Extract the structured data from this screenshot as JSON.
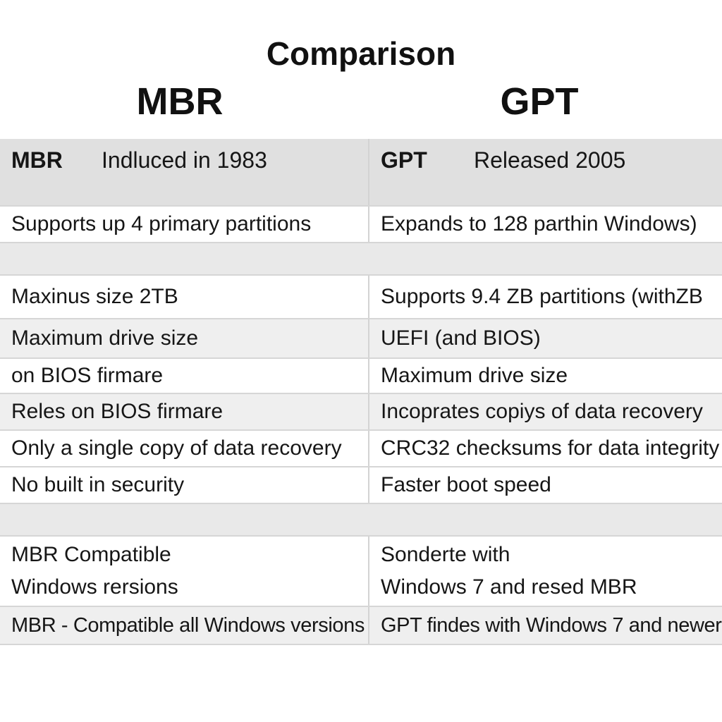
{
  "title": "Comparison",
  "columns": {
    "left": "MBR",
    "right": "GPT"
  },
  "header_row": {
    "left_label": "MBR",
    "left_value": "Indluced in 1983",
    "right_label": "GPT",
    "right_value": "Released 2005"
  },
  "rows": [
    {
      "left": "Supports up 4 primary partitions",
      "right": "Expands  to 128 parthin Windows)"
    },
    {
      "left": "Maxinus size 2TB",
      "right": "Supports 9.4 ZB partitions (withZB"
    },
    {
      "left": "Maximum drive size",
      "right": "UEFI (and BIOS)"
    },
    {
      "left": "on BIOS firmare",
      "right": "Maximum drive size"
    },
    {
      "left": "Reles on BIOS firmare",
      "right": "Incoprates copiys of data recovery"
    },
    {
      "left": "Only a single copy of data recovery",
      "right": "CRC32 checksums for data integrity"
    },
    {
      "left": "No built in security",
      "right": "Faster boot speed"
    }
  ],
  "compat_row": {
    "left_line1": "MBR Compatible",
    "left_line2": "Windows rersions",
    "right_line1": "Sonderte with",
    "right_line2": "Windows 7 and resed MBR"
  },
  "last_row": {
    "left": "MBR - Compatible  all Windows versions",
    "right": "GPT findes with Windows 7 and newer"
  }
}
